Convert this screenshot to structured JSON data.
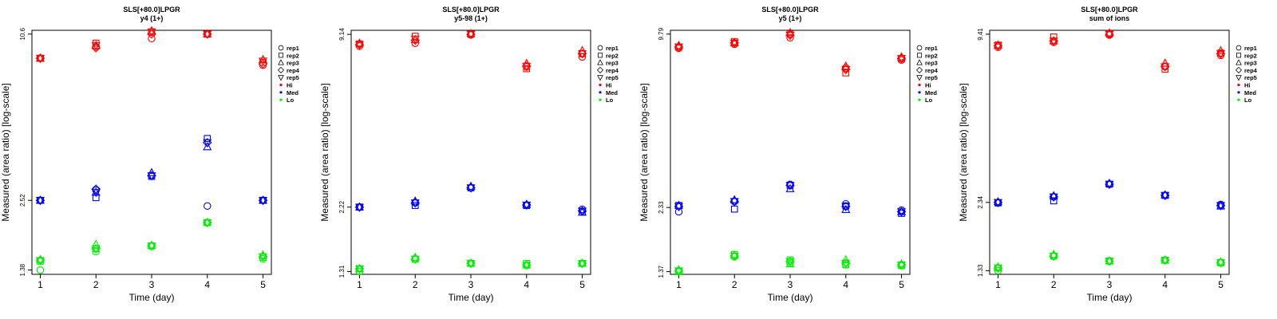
{
  "chart_data": [
    {
      "type": "scatter",
      "title": "SLS[+80.0]LPGR",
      "subtitle": "y4 (1+)",
      "xlabel": "Time (day)",
      "ylabel": "Measured (area ratio) [log-scale]",
      "log_y": true,
      "xlim": [
        0.85,
        5.15
      ],
      "ylim": [
        1.33,
        10.95
      ],
      "x_ticks": [
        "1",
        "2",
        "3",
        "4",
        "5"
      ],
      "y_ticks": [
        "1.38",
        "2.52",
        "10.6"
      ],
      "y_tick_values": [
        1.38,
        2.52,
        10.6
      ],
      "legend": {
        "position": "top-right",
        "shapes": [
          "rep1",
          "rep2",
          "rep3",
          "rep4",
          "rep5"
        ],
        "levels": [
          "Hi",
          "Med",
          "Lo"
        ]
      },
      "colors": {
        "Hi": "#ff0000",
        "Med": "#0000ff",
        "Lo": "#00ee00"
      },
      "series": [
        {
          "name": "Hi",
          "color": "#ff0000",
          "values": [
            [
              8.6,
              8.6,
              8.6,
              8.6,
              8.6
            ],
            [
              9.5,
              9.8,
              9.6,
              9.4,
              9.6
            ],
            [
              10.2,
              10.8,
              10.9,
              10.6,
              10.8
            ],
            [
              10.6,
              10.6,
              10.6,
              10.6,
              10.6
            ],
            [
              8.1,
              8.3,
              8.5,
              8.2,
              8.4
            ]
          ]
        },
        {
          "name": "Med",
          "color": "#0000ff",
          "values": [
            [
              2.52,
              2.52,
              2.52,
              2.52,
              2.52
            ],
            [
              2.75,
              2.58,
              2.7,
              2.78,
              2.7
            ],
            [
              3.12,
              3.1,
              3.2,
              3.12,
              3.12
            ],
            [
              2.4,
              4.3,
              4.0,
              4.15,
              4.15
            ],
            [
              2.52,
              2.52,
              2.52,
              2.52,
              2.52
            ]
          ]
        },
        {
          "name": "Lo",
          "color": "#00ee00",
          "values": [
            [
              1.38,
              1.49,
              1.51,
              1.5,
              1.5
            ],
            [
              1.62,
              1.66,
              1.72,
              1.66,
              1.66
            ],
            [
              1.7,
              1.7,
              1.71,
              1.7,
              1.7
            ],
            [
              2.08,
              2.08,
              2.08,
              2.08,
              2.08
            ],
            [
              1.52,
              1.54,
              1.57,
              1.55,
              1.55
            ]
          ]
        }
      ]
    },
    {
      "type": "scatter",
      "title": "SLS[+80.0]LPGR",
      "subtitle": "y5-98 (1+)",
      "xlabel": "Time (day)",
      "ylabel": "Measured (area ratio) [log-scale]",
      "log_y": true,
      "xlim": [
        0.85,
        5.15
      ],
      "ylim": [
        1.28,
        9.45
      ],
      "x_ticks": [
        "1",
        "2",
        "3",
        "4",
        "5"
      ],
      "y_ticks": [
        "1.31",
        "2.22",
        "9.14"
      ],
      "y_tick_values": [
        1.31,
        2.22,
        9.14
      ],
      "legend": {
        "position": "top-right",
        "shapes": [
          "rep1",
          "rep2",
          "rep3",
          "rep4",
          "rep5"
        ],
        "levels": [
          "Hi",
          "Med",
          "Lo"
        ]
      },
      "colors": {
        "Hi": "#ff0000",
        "Med": "#0000ff",
        "Lo": "#00ee00"
      },
      "series": [
        {
          "name": "Hi",
          "color": "#ff0000",
          "values": [
            [
              8.3,
              8.45,
              8.5,
              8.4,
              8.4
            ],
            [
              8.5,
              9.0,
              8.75,
              8.7,
              8.8
            ],
            [
              9.1,
              9.15,
              9.2,
              9.15,
              9.15
            ],
            [
              7.0,
              6.9,
              7.2,
              7.05,
              7.05
            ],
            [
              7.6,
              7.8,
              8.0,
              7.8,
              7.8
            ]
          ]
        },
        {
          "name": "Med",
          "color": "#0000ff",
          "values": [
            [
              2.22,
              2.22,
              2.22,
              2.22,
              2.22
            ],
            [
              2.3,
              2.25,
              2.33,
              2.3,
              2.3
            ],
            [
              2.6,
              2.6,
              2.63,
              2.6,
              2.6
            ],
            [
              2.26,
              2.25,
              2.27,
              2.26,
              2.26
            ],
            [
              2.18,
              2.13,
              2.13,
              2.15,
              2.15
            ]
          ]
        },
        {
          "name": "Lo",
          "color": "#00ee00",
          "values": [
            [
              1.31,
              1.34,
              1.34,
              1.34,
              1.34
            ],
            [
              1.45,
              1.45,
              1.47,
              1.45,
              1.45
            ],
            [
              1.4,
              1.4,
              1.4,
              1.4,
              1.4
            ],
            [
              1.38,
              1.4,
              1.38,
              1.38,
              1.38
            ],
            [
              1.4,
              1.4,
              1.4,
              1.4,
              1.4
            ]
          ]
        }
      ]
    },
    {
      "type": "scatter",
      "title": "SLS[+80.0]LPGR",
      "subtitle": "y5 (1+)",
      "xlabel": "Time (day)",
      "ylabel": "Measured (area ratio) [log-scale]",
      "log_y": true,
      "xlim": [
        0.85,
        5.15
      ],
      "ylim": [
        1.34,
        10.1
      ],
      "x_ticks": [
        "1",
        "2",
        "3",
        "4",
        "5"
      ],
      "y_ticks": [
        "1.37",
        "2.33",
        "9.79"
      ],
      "y_tick_values": [
        1.37,
        2.33,
        9.79
      ],
      "legend": {
        "position": "top-right",
        "shapes": [
          "rep1",
          "rep2",
          "rep3",
          "rep4",
          "rep5"
        ],
        "levels": [
          "Hi",
          "Med",
          "Lo"
        ]
      },
      "colors": {
        "Hi": "#ff0000",
        "Med": "#0000ff",
        "Lo": "#00ee00"
      },
      "series": [
        {
          "name": "Hi",
          "color": "#ff0000",
          "values": [
            [
              8.7,
              8.8,
              8.9,
              8.8,
              8.8
            ],
            [
              9.0,
              9.2,
              9.1,
              9.1,
              9.1
            ],
            [
              9.5,
              9.8,
              9.9,
              9.7,
              9.7
            ],
            [
              7.4,
              7.1,
              7.5,
              7.3,
              7.3
            ],
            [
              7.9,
              8.0,
              8.1,
              8.0,
              8.0
            ]
          ]
        },
        {
          "name": "Med",
          "color": "#0000ff",
          "values": [
            [
              2.25,
              2.37,
              2.37,
              2.35,
              2.35
            ],
            [
              2.45,
              2.3,
              2.48,
              2.45,
              2.45
            ],
            [
              2.82,
              2.8,
              2.72,
              2.8,
              2.8
            ],
            [
              2.4,
              2.36,
              2.29,
              2.35,
              2.35
            ],
            [
              2.28,
              2.22,
              2.25,
              2.25,
              2.25
            ]
          ]
        },
        {
          "name": "Lo",
          "color": "#00ee00",
          "values": [
            [
              1.37,
              1.37,
              1.39,
              1.38,
              1.38
            ],
            [
              1.55,
              1.58,
              1.57,
              1.56,
              1.56
            ],
            [
              1.47,
              1.51,
              1.46,
              1.49,
              1.49
            ],
            [
              1.45,
              1.45,
              1.51,
              1.47,
              1.47
            ],
            [
              1.44,
              1.44,
              1.46,
              1.45,
              1.45
            ]
          ]
        }
      ]
    },
    {
      "type": "scatter",
      "title": "SLS[+80.0]LPGR",
      "subtitle": "sum of ions",
      "xlabel": "Time (day)",
      "ylabel": "Measured (area ratio) [log-scale]",
      "log_y": true,
      "xlim": [
        0.85,
        5.15
      ],
      "ylim": [
        1.29,
        9.72
      ],
      "x_ticks": [
        "1",
        "2",
        "3",
        "4",
        "5"
      ],
      "y_ticks": [
        "1.33",
        "2.34",
        "9.41"
      ],
      "y_tick_values": [
        1.33,
        2.34,
        9.41
      ],
      "legend": {
        "position": "top-right",
        "shapes": [
          "rep1",
          "rep2",
          "rep3",
          "rep4",
          "rep5"
        ],
        "levels": [
          "Hi",
          "Med",
          "Lo"
        ]
      },
      "colors": {
        "Hi": "#ff0000",
        "Med": "#0000ff",
        "Lo": "#00ee00"
      },
      "series": [
        {
          "name": "Hi",
          "color": "#ff0000",
          "values": [
            [
              8.45,
              8.6,
              8.6,
              8.55,
              8.55
            ],
            [
              8.8,
              9.2,
              8.9,
              8.9,
              8.9
            ],
            [
              9.35,
              9.45,
              9.5,
              9.4,
              9.4
            ],
            [
              7.2,
              7.05,
              7.4,
              7.2,
              7.2
            ],
            [
              7.9,
              8.05,
              8.2,
              8.0,
              8.0
            ]
          ]
        },
        {
          "name": "Med",
          "color": "#0000ff",
          "values": [
            [
              2.33,
              2.33,
              2.35,
              2.34,
              2.34
            ],
            [
              2.45,
              2.37,
              2.47,
              2.45,
              2.45
            ],
            [
              2.72,
              2.72,
              2.74,
              2.72,
              2.72
            ],
            [
              2.48,
              2.48,
              2.49,
              2.48,
              2.48
            ],
            [
              2.3,
              2.27,
              2.27,
              2.28,
              2.28
            ]
          ]
        },
        {
          "name": "Lo",
          "color": "#00ee00",
          "values": [
            [
              1.33,
              1.36,
              1.37,
              1.36,
              1.36
            ],
            [
              1.5,
              1.5,
              1.52,
              1.5,
              1.5
            ],
            [
              1.44,
              1.44,
              1.44,
              1.44,
              1.44
            ],
            [
              1.45,
              1.45,
              1.45,
              1.45,
              1.45
            ],
            [
              1.42,
              1.42,
              1.43,
              1.42,
              1.42
            ]
          ]
        }
      ]
    }
  ]
}
